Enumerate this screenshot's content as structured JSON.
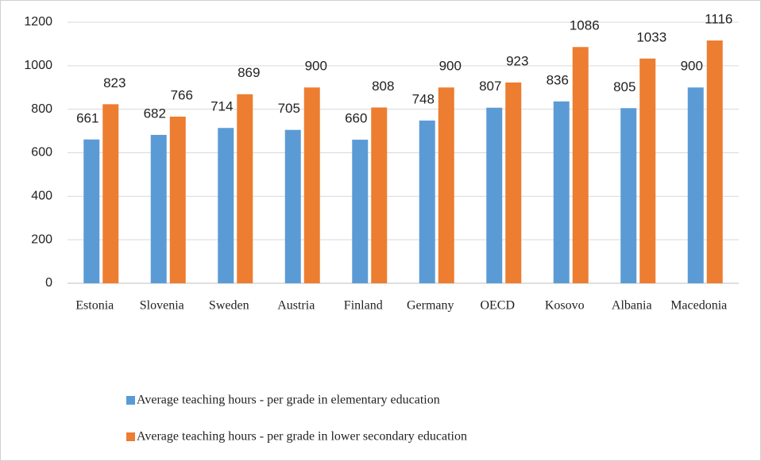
{
  "chart_data": {
    "type": "bar",
    "categories": [
      "Estonia",
      "Slovenia",
      "Sweden",
      "Austria",
      "Finland",
      "Germany",
      "OECD",
      "Kosovo",
      "Albania",
      "Macedonia"
    ],
    "series": [
      {
        "name": "Average teaching hours - per grade in elementary education",
        "color": "#5b9bd5",
        "values": [
          661,
          682,
          714,
          705,
          660,
          748,
          807,
          836,
          805,
          900
        ]
      },
      {
        "name": "Average teaching hours - per grade in lower secondary education",
        "color": "#ed7d31",
        "values": [
          823,
          766,
          869,
          900,
          808,
          900,
          923,
          1086,
          1033,
          1116
        ]
      }
    ],
    "ylim": [
      0,
      1200
    ],
    "yticks": [
      0,
      200,
      400,
      600,
      800,
      1000,
      1200
    ],
    "grid": true,
    "legend": "bottom"
  }
}
